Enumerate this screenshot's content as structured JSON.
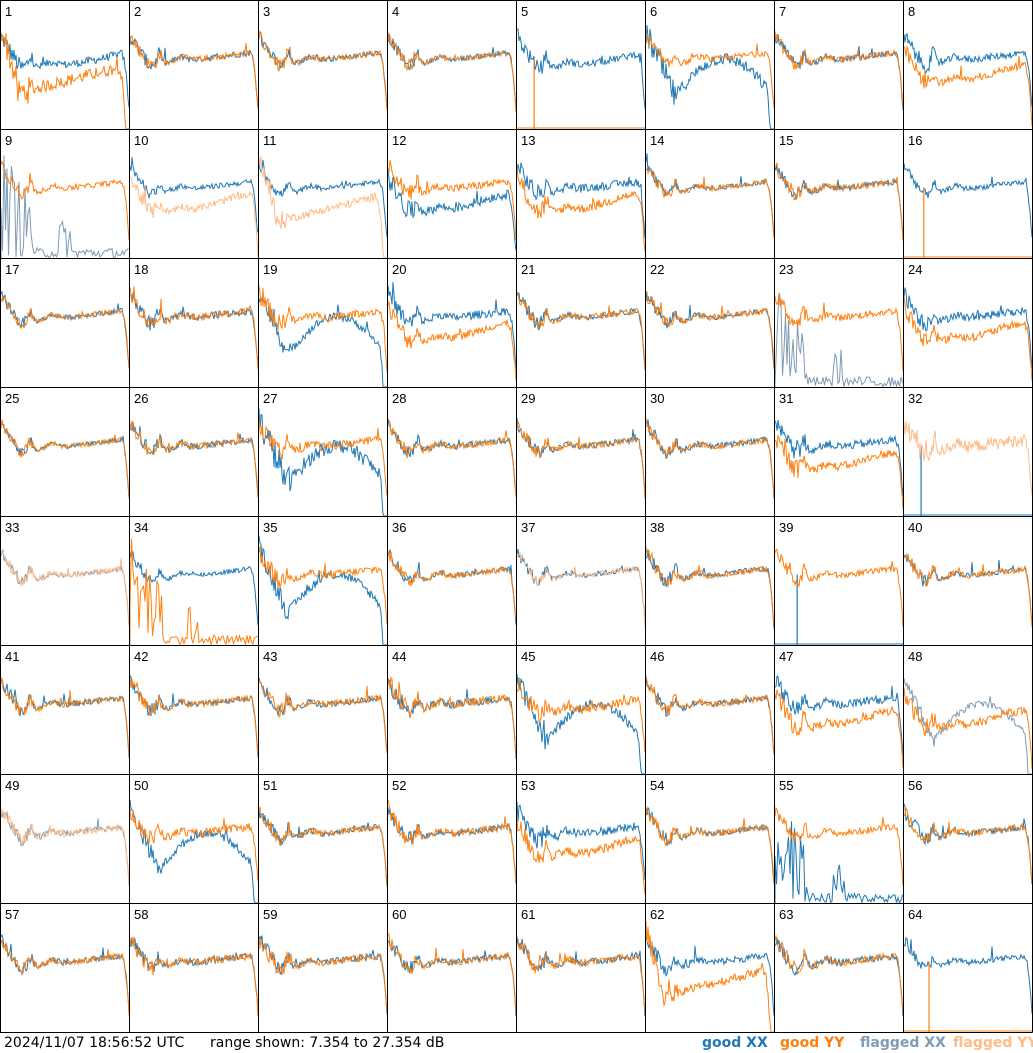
{
  "chart_data": {
    "type": "line",
    "grid": {
      "rows": 8,
      "cols": 8
    },
    "panels": [
      {
        "id": "1",
        "state": [
          "good",
          "good"
        ],
        "shape": [
          "hump",
          "deepdip"
        ],
        "noise": [
          8,
          12
        ]
      },
      {
        "id": "2",
        "state": [
          "good",
          "good"
        ],
        "shape": [
          "normal",
          "normal"
        ],
        "noise": [
          6,
          6
        ]
      },
      {
        "id": "3",
        "state": [
          "good",
          "good"
        ],
        "shape": [
          "normal",
          "normal"
        ],
        "noise": [
          5,
          6
        ]
      },
      {
        "id": "4",
        "state": [
          "good",
          "good"
        ],
        "shape": [
          "normal",
          "normal"
        ],
        "noise": [
          5,
          5
        ]
      },
      {
        "id": "5",
        "state": [
          "good",
          "spike"
        ],
        "shape": [
          "hump",
          "spike"
        ],
        "noise": [
          7,
          0
        ]
      },
      {
        "id": "6",
        "state": [
          "good",
          "good"
        ],
        "shape": [
          "lowhump",
          "normal"
        ],
        "noise": [
          12,
          6
        ]
      },
      {
        "id": "7",
        "state": [
          "good",
          "good"
        ],
        "shape": [
          "normal",
          "normal"
        ],
        "noise": [
          6,
          6
        ]
      },
      {
        "id": "8",
        "state": [
          "good",
          "good"
        ],
        "shape": [
          "normal",
          "lowplat"
        ],
        "noise": [
          7,
          7
        ]
      },
      {
        "id": "9",
        "state": [
          "flagged",
          "good"
        ],
        "shape": [
          "spikes",
          "normal"
        ],
        "noise": [
          0,
          5
        ]
      },
      {
        "id": "10",
        "state": [
          "good",
          "flagged"
        ],
        "shape": [
          "normal",
          "lowplat"
        ],
        "noise": [
          5,
          7
        ]
      },
      {
        "id": "11",
        "state": [
          "good",
          "flagged"
        ],
        "shape": [
          "normal",
          "deepdip"
        ],
        "noise": [
          5,
          8
        ]
      },
      {
        "id": "12",
        "state": [
          "good",
          "good"
        ],
        "shape": [
          "lowplat",
          "normal"
        ],
        "noise": [
          9,
          8
        ]
      },
      {
        "id": "13",
        "state": [
          "good",
          "good"
        ],
        "shape": [
          "normal",
          "lowplat"
        ],
        "noise": [
          8,
          9
        ]
      },
      {
        "id": "14",
        "state": [
          "good",
          "good"
        ],
        "shape": [
          "normal",
          "normal"
        ],
        "noise": [
          5,
          5
        ]
      },
      {
        "id": "15",
        "state": [
          "good",
          "good"
        ],
        "shape": [
          "normal",
          "normal"
        ],
        "noise": [
          6,
          6
        ]
      },
      {
        "id": "16",
        "state": [
          "good",
          "spike"
        ],
        "shape": [
          "normal",
          "spike"
        ],
        "noise": [
          5,
          0
        ]
      },
      {
        "id": "17",
        "state": [
          "good",
          "good"
        ],
        "shape": [
          "normal",
          "normal"
        ],
        "noise": [
          5,
          5
        ]
      },
      {
        "id": "18",
        "state": [
          "good",
          "good"
        ],
        "shape": [
          "normal",
          "normal"
        ],
        "noise": [
          7,
          7
        ]
      },
      {
        "id": "19",
        "state": [
          "good",
          "good"
        ],
        "shape": [
          "lowhump",
          "normal"
        ],
        "noise": [
          8,
          8
        ]
      },
      {
        "id": "20",
        "state": [
          "good",
          "good"
        ],
        "shape": [
          "normal",
          "lowplat"
        ],
        "noise": [
          8,
          8
        ]
      },
      {
        "id": "21",
        "state": [
          "good",
          "good"
        ],
        "shape": [
          "normal",
          "normal"
        ],
        "noise": [
          6,
          6
        ]
      },
      {
        "id": "22",
        "state": [
          "good",
          "good"
        ],
        "shape": [
          "normal",
          "normal"
        ],
        "noise": [
          5,
          6
        ]
      },
      {
        "id": "23",
        "state": [
          "flagged",
          "good"
        ],
        "shape": [
          "spikes",
          "normal"
        ],
        "noise": [
          0,
          7
        ]
      },
      {
        "id": "24",
        "state": [
          "good",
          "good"
        ],
        "shape": [
          "normal",
          "lowplat"
        ],
        "noise": [
          8,
          8
        ]
      },
      {
        "id": "25",
        "state": [
          "good",
          "good"
        ],
        "shape": [
          "normal",
          "normal"
        ],
        "noise": [
          4,
          5
        ]
      },
      {
        "id": "26",
        "state": [
          "good",
          "good"
        ],
        "shape": [
          "normal",
          "normal"
        ],
        "noise": [
          6,
          6
        ]
      },
      {
        "id": "27",
        "state": [
          "good",
          "good"
        ],
        "shape": [
          "lowhump",
          "normal"
        ],
        "noise": [
          14,
          8
        ]
      },
      {
        "id": "28",
        "state": [
          "good",
          "good"
        ],
        "shape": [
          "normal",
          "normal"
        ],
        "noise": [
          6,
          6
        ]
      },
      {
        "id": "29",
        "state": [
          "good",
          "good"
        ],
        "shape": [
          "normal",
          "normal"
        ],
        "noise": [
          6,
          6
        ]
      },
      {
        "id": "30",
        "state": [
          "good",
          "good"
        ],
        "shape": [
          "normal",
          "normal"
        ],
        "noise": [
          6,
          6
        ]
      },
      {
        "id": "31",
        "state": [
          "good",
          "good"
        ],
        "shape": [
          "normal",
          "lowplat"
        ],
        "noise": [
          8,
          8
        ]
      },
      {
        "id": "32",
        "state": [
          "spike",
          "flagged"
        ],
        "shape": [
          "spike",
          "normal"
        ],
        "noise": [
          0,
          12
        ]
      },
      {
        "id": "33",
        "state": [
          "flagged",
          "flagged"
        ],
        "shape": [
          "normal",
          "normal"
        ],
        "noise": [
          5,
          5
        ]
      },
      {
        "id": "34",
        "state": [
          "good",
          "good"
        ],
        "shape": [
          "normal",
          "spikes"
        ],
        "noise": [
          5,
          0
        ]
      },
      {
        "id": "35",
        "state": [
          "good",
          "good"
        ],
        "shape": [
          "lowhump",
          "normal"
        ],
        "noise": [
          9,
          8
        ]
      },
      {
        "id": "36",
        "state": [
          "good",
          "good"
        ],
        "shape": [
          "normal",
          "normal"
        ],
        "noise": [
          5,
          6
        ]
      },
      {
        "id": "37",
        "state": [
          "good",
          "flagged"
        ],
        "shape": [
          "normal",
          "normal"
        ],
        "noise": [
          5,
          5
        ]
      },
      {
        "id": "38",
        "state": [
          "good",
          "good"
        ],
        "shape": [
          "normal",
          "normal"
        ],
        "noise": [
          6,
          6
        ]
      },
      {
        "id": "39",
        "state": [
          "spike",
          "good"
        ],
        "shape": [
          "spike",
          "normal"
        ],
        "noise": [
          0,
          6
        ]
      },
      {
        "id": "40",
        "state": [
          "good",
          "good"
        ],
        "shape": [
          "normal",
          "normal"
        ],
        "noise": [
          5,
          6
        ]
      },
      {
        "id": "41",
        "state": [
          "good",
          "good"
        ],
        "shape": [
          "normal",
          "normal"
        ],
        "noise": [
          6,
          6
        ]
      },
      {
        "id": "42",
        "state": [
          "good",
          "good"
        ],
        "shape": [
          "normal",
          "normal"
        ],
        "noise": [
          6,
          6
        ]
      },
      {
        "id": "43",
        "state": [
          "good",
          "good"
        ],
        "shape": [
          "normal",
          "normal"
        ],
        "noise": [
          6,
          6
        ]
      },
      {
        "id": "44",
        "state": [
          "good",
          "good"
        ],
        "shape": [
          "normal",
          "normal"
        ],
        "noise": [
          8,
          8
        ]
      },
      {
        "id": "45",
        "state": [
          "good",
          "good"
        ],
        "shape": [
          "lowhump",
          "hump"
        ],
        "noise": [
          9,
          9
        ]
      },
      {
        "id": "46",
        "state": [
          "good",
          "good"
        ],
        "shape": [
          "normal",
          "normal"
        ],
        "noise": [
          6,
          6
        ]
      },
      {
        "id": "47",
        "state": [
          "good",
          "good"
        ],
        "shape": [
          "normal",
          "lowplat"
        ],
        "noise": [
          8,
          8
        ]
      },
      {
        "id": "48",
        "state": [
          "flagged",
          "good"
        ],
        "shape": [
          "lowhump",
          "lowplat"
        ],
        "noise": [
          6,
          8
        ]
      },
      {
        "id": "49",
        "state": [
          "flagged",
          "flagged"
        ],
        "shape": [
          "normal",
          "normal"
        ],
        "noise": [
          6,
          6
        ]
      },
      {
        "id": "50",
        "state": [
          "good",
          "good"
        ],
        "shape": [
          "lowhump",
          "normal"
        ],
        "noise": [
          8,
          8
        ]
      },
      {
        "id": "51",
        "state": [
          "good",
          "good"
        ],
        "shape": [
          "normal",
          "normal"
        ],
        "noise": [
          6,
          6
        ]
      },
      {
        "id": "52",
        "state": [
          "good",
          "good"
        ],
        "shape": [
          "normal",
          "normal"
        ],
        "noise": [
          7,
          7
        ]
      },
      {
        "id": "53",
        "state": [
          "good",
          "good"
        ],
        "shape": [
          "normal",
          "lowplat"
        ],
        "noise": [
          9,
          9
        ]
      },
      {
        "id": "54",
        "state": [
          "good",
          "good"
        ],
        "shape": [
          "normal",
          "normal"
        ],
        "noise": [
          6,
          6
        ]
      },
      {
        "id": "55",
        "state": [
          "good",
          "good"
        ],
        "shape": [
          "spikes",
          "normal"
        ],
        "noise": [
          0,
          6
        ]
      },
      {
        "id": "56",
        "state": [
          "good",
          "good"
        ],
        "shape": [
          "normal",
          "normal"
        ],
        "noise": [
          7,
          7
        ]
      },
      {
        "id": "57",
        "state": [
          "good",
          "good"
        ],
        "shape": [
          "normal",
          "normal"
        ],
        "noise": [
          6,
          6
        ]
      },
      {
        "id": "58",
        "state": [
          "good",
          "good"
        ],
        "shape": [
          "normal",
          "normal"
        ],
        "noise": [
          7,
          7
        ]
      },
      {
        "id": "59",
        "state": [
          "good",
          "good"
        ],
        "shape": [
          "normal",
          "normal"
        ],
        "noise": [
          7,
          7
        ]
      },
      {
        "id": "60",
        "state": [
          "good",
          "good"
        ],
        "shape": [
          "normal",
          "normal"
        ],
        "noise": [
          6,
          6
        ]
      },
      {
        "id": "61",
        "state": [
          "good",
          "good"
        ],
        "shape": [
          "normal",
          "normal"
        ],
        "noise": [
          7,
          7
        ]
      },
      {
        "id": "62",
        "state": [
          "good",
          "good"
        ],
        "shape": [
          "normal",
          "deepdip"
        ],
        "noise": [
          7,
          9
        ]
      },
      {
        "id": "63",
        "state": [
          "good",
          "good"
        ],
        "shape": [
          "normal",
          "normal"
        ],
        "noise": [
          7,
          7
        ]
      },
      {
        "id": "64",
        "state": [
          "good",
          "spike"
        ],
        "shape": [
          "normal",
          "spike"
        ],
        "noise": [
          5,
          0
        ]
      }
    ],
    "legend": {
      "position": "bottom-right",
      "items": [
        {
          "label": "good XX",
          "color": "#1f77b4"
        },
        {
          "label": "good YY",
          "color": "#ff7f0e"
        },
        {
          "label": "flagged XX",
          "color": "#7f9bb5"
        },
        {
          "label": "flagged YY",
          "color": "#ffbb88"
        }
      ]
    }
  },
  "footer": {
    "timestamp": "2024/11/07 18:56:52 UTC",
    "range": "range shown: 7.354 to 27.354 dB"
  }
}
